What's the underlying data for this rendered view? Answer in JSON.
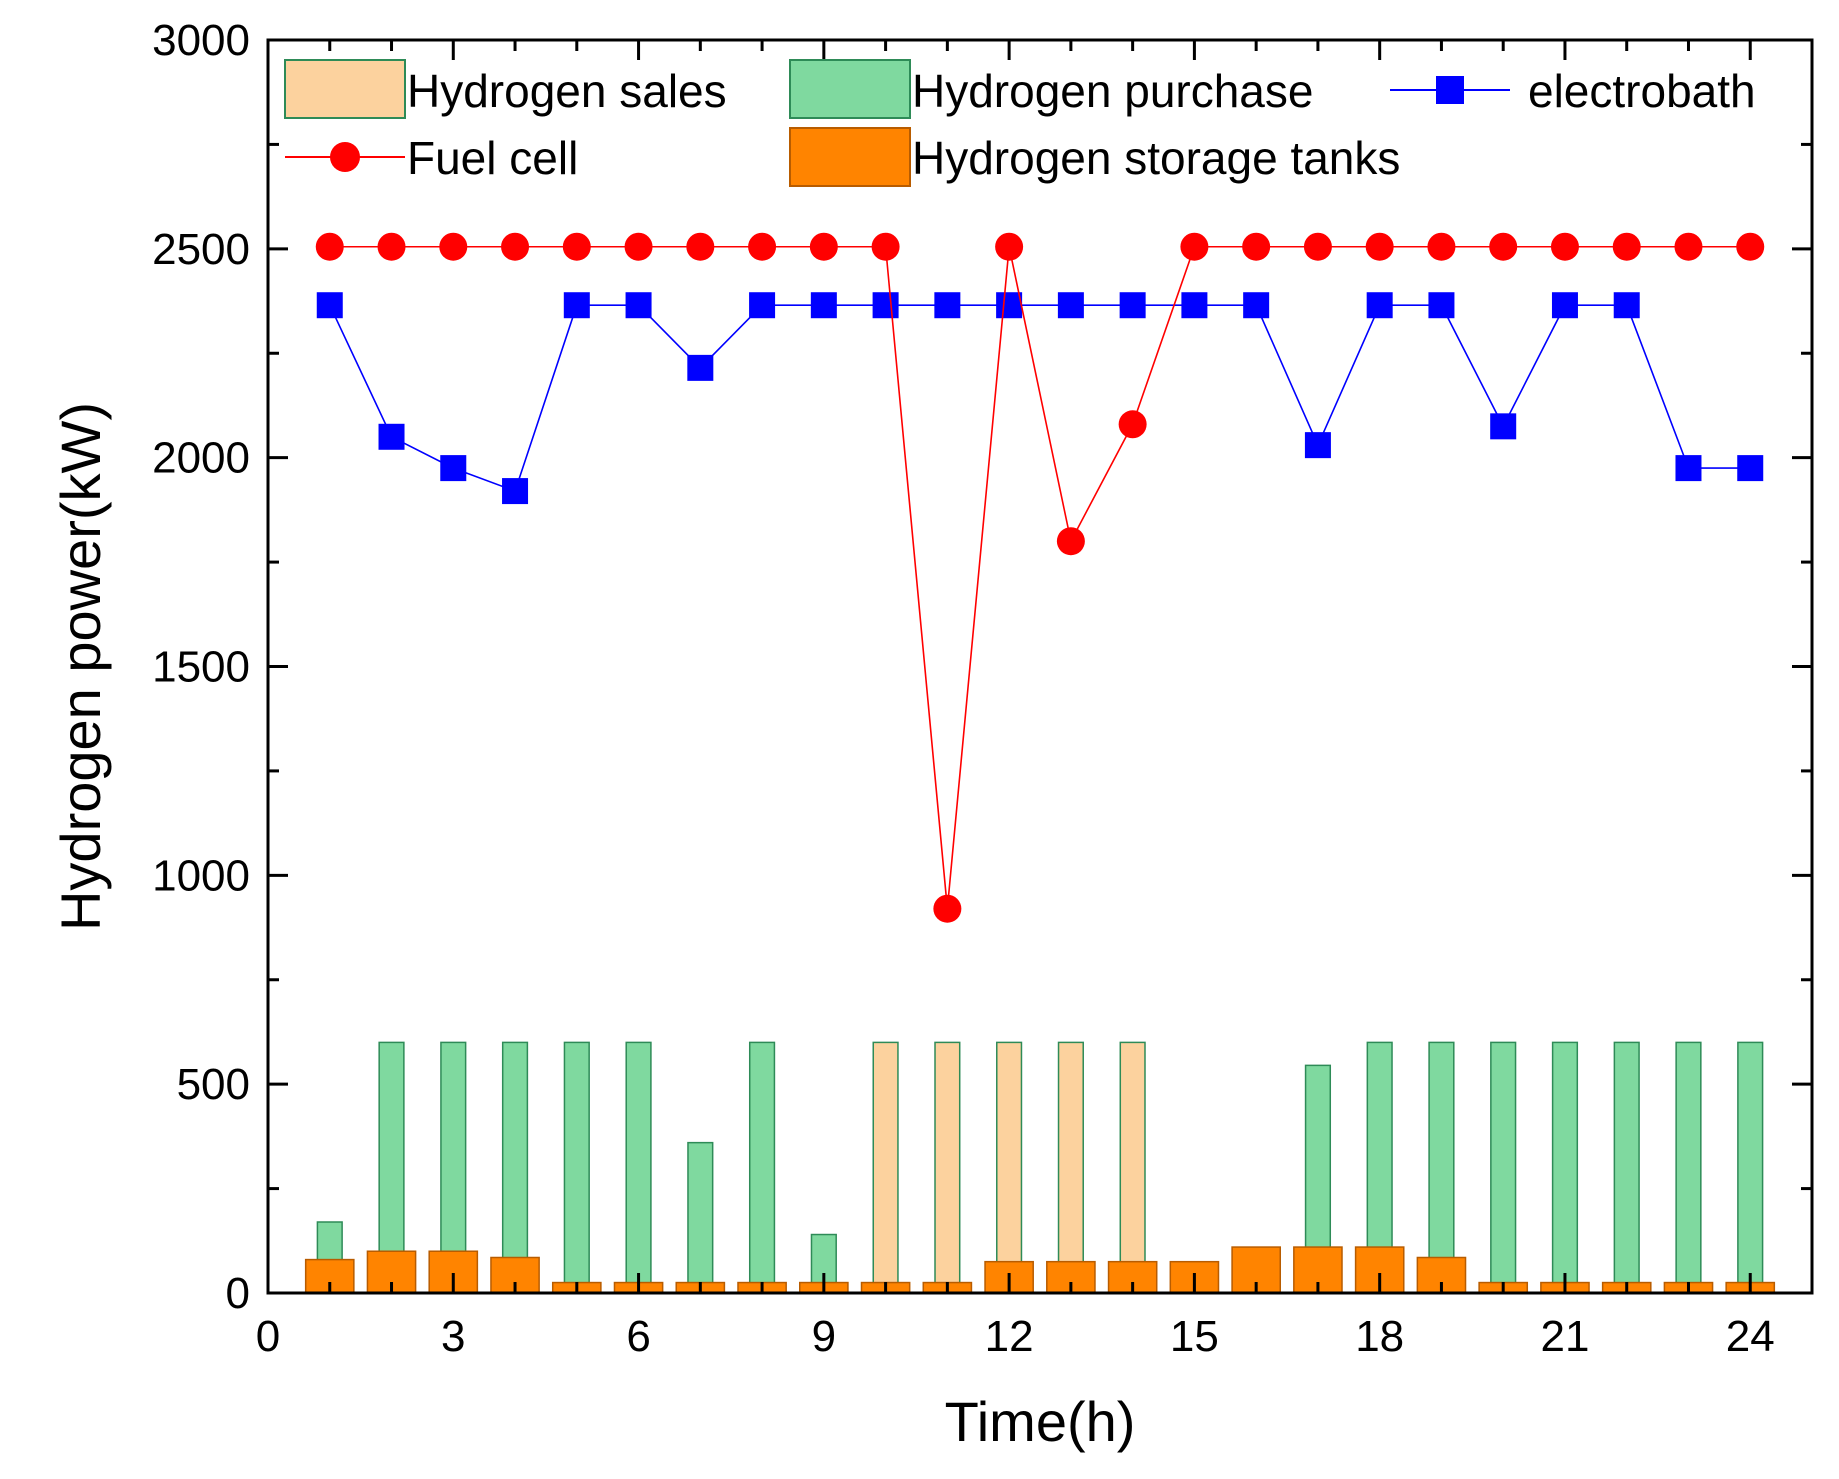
{
  "chart_data": {
    "type": "bar",
    "title": "",
    "xlabel": "Time(h)",
    "ylabel": "Hydrogen power(kW)",
    "xlim": [
      0,
      25
    ],
    "ylim": [
      0,
      3000
    ],
    "x": [
      1,
      2,
      3,
      4,
      5,
      6,
      7,
      8,
      9,
      10,
      11,
      12,
      13,
      14,
      15,
      16,
      17,
      18,
      19,
      20,
      21,
      22,
      23,
      24
    ],
    "x_ticks": [
      0,
      3,
      6,
      9,
      12,
      15,
      18,
      21,
      24
    ],
    "y_ticks": [
      0,
      500,
      1000,
      1500,
      2000,
      2500,
      3000
    ],
    "legend_position": "top",
    "colors": {
      "hydrogen_sales": "#FCD29E",
      "hydrogen_purchase": "#7FD99F",
      "purchase_edge": "#2E8B57",
      "storage": "#FF8400",
      "storage_edge": "#B85C00",
      "electrobath": "#0000FF",
      "fuel_cell": "#FF0000"
    },
    "series": [
      {
        "name": "Hydrogen sales",
        "type": "bar",
        "values": [
          0,
          0,
          0,
          0,
          0,
          0,
          0,
          0,
          0,
          600,
          600,
          600,
          600,
          600,
          0,
          0,
          0,
          0,
          0,
          0,
          0,
          0,
          0,
          0
        ]
      },
      {
        "name": "Hydrogen purchase",
        "type": "bar",
        "values": [
          170,
          600,
          600,
          600,
          600,
          600,
          360,
          600,
          140,
          0,
          0,
          0,
          0,
          0,
          0,
          0,
          545,
          600,
          600,
          600,
          600,
          600,
          600,
          600
        ]
      },
      {
        "name": "electrobath",
        "type": "line",
        "marker": "square",
        "values": [
          2365,
          2050,
          1975,
          1920,
          2365,
          2365,
          2215,
          2365,
          2365,
          2365,
          2365,
          2365,
          2365,
          2365,
          2365,
          2365,
          2030,
          2365,
          2365,
          2075,
          2365,
          2365,
          1975,
          1975
        ]
      },
      {
        "name": "Fuel cell",
        "type": "line",
        "marker": "circle",
        "values": [
          2505,
          2505,
          2505,
          2505,
          2505,
          2505,
          2505,
          2505,
          2505,
          2505,
          920,
          2505,
          1800,
          2080,
          2505,
          2505,
          2505,
          2505,
          2505,
          2505,
          2505,
          2505,
          2505,
          2505
        ]
      },
      {
        "name": "Hydrogen storage tanks",
        "type": "bar",
        "values": [
          80,
          100,
          100,
          85,
          25,
          25,
          25,
          25,
          25,
          25,
          25,
          75,
          75,
          75,
          75,
          110,
          110,
          110,
          85,
          25,
          25,
          25,
          25,
          25
        ]
      }
    ]
  }
}
